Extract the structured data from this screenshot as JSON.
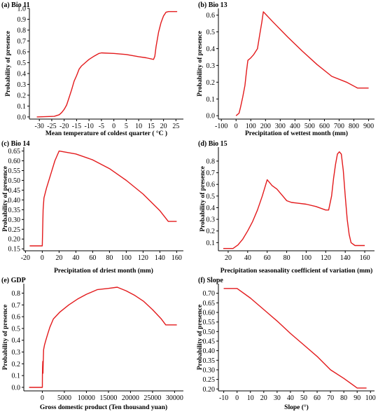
{
  "colors": {
    "line": "#e31a1c",
    "axis": "#000000"
  },
  "chart_data": [
    {
      "type": "line",
      "panel": "(a)",
      "title": "Bio 11",
      "xlabel": "Mean temperature of coldest quarter ( °C )",
      "ylabel": "Probability of presence",
      "xlim": [
        -34,
        28
      ],
      "ylim": [
        -0.02,
        1.0
      ],
      "xticks": [
        -30,
        -25,
        -20,
        -15,
        -10,
        -5,
        0,
        5,
        10,
        15,
        20,
        25
      ],
      "yticks": [
        0.0,
        0.1,
        0.2,
        0.3,
        0.4,
        0.5,
        0.6,
        0.7,
        0.8,
        0.9,
        1.0
      ],
      "x": [
        -31,
        -24,
        -22,
        -21,
        -20,
        -19,
        -18,
        -17,
        -16,
        -15,
        -14,
        -13,
        -12,
        -11,
        -10,
        -8,
        -6,
        -5,
        0,
        5,
        10,
        13,
        16,
        16.5,
        17,
        18,
        19,
        20,
        21,
        22,
        25.5
      ],
      "y": [
        0.0,
        0.005,
        0.02,
        0.04,
        0.07,
        0.11,
        0.18,
        0.25,
        0.33,
        0.38,
        0.44,
        0.47,
        0.49,
        0.51,
        0.53,
        0.56,
        0.585,
        0.59,
        0.585,
        0.575,
        0.555,
        0.545,
        0.53,
        0.56,
        0.65,
        0.78,
        0.87,
        0.93,
        0.965,
        0.97,
        0.97
      ]
    },
    {
      "type": "line",
      "panel": "(b)",
      "title": "Bio 13",
      "xlabel": "Precipitation of wettest month (mm)",
      "ylabel": "Probability of presence",
      "xlim": [
        -120,
        940
      ],
      "ylim": [
        -0.02,
        0.64
      ],
      "xticks": [
        -100,
        0,
        100,
        200,
        300,
        400,
        500,
        600,
        700,
        800,
        900
      ],
      "yticks": [
        0.0,
        0.1,
        0.2,
        0.3,
        0.4,
        0.5,
        0.6
      ],
      "x": [
        0,
        20,
        30,
        45,
        60,
        70,
        80,
        100,
        120,
        145,
        160,
        175,
        185,
        250,
        350,
        450,
        550,
        650,
        750,
        825,
        900
      ],
      "y": [
        0.0,
        0.015,
        0.05,
        0.11,
        0.18,
        0.26,
        0.33,
        0.345,
        0.365,
        0.4,
        0.48,
        0.56,
        0.62,
        0.56,
        0.47,
        0.385,
        0.305,
        0.235,
        0.2,
        0.165,
        0.165
      ]
    },
    {
      "type": "line",
      "panel": "(c)",
      "title": "Bio 14",
      "xlabel": "Precipitation of driest month (mm)",
      "ylabel": "Probability of presence",
      "xlim": [
        -22,
        168
      ],
      "ylim": [
        0.14,
        0.67
      ],
      "xticks": [
        -20,
        0,
        20,
        40,
        60,
        80,
        100,
        120,
        140,
        160
      ],
      "yticks": [
        0.15,
        0.2,
        0.25,
        0.3,
        0.35,
        0.4,
        0.45,
        0.5,
        0.55,
        0.6,
        0.65
      ],
      "x": [
        -15,
        0,
        1,
        2,
        5,
        10,
        15,
        20,
        40,
        60,
        80,
        100,
        120,
        140,
        150,
        160
      ],
      "y": [
        0.165,
        0.165,
        0.35,
        0.41,
        0.46,
        0.53,
        0.6,
        0.65,
        0.635,
        0.605,
        0.56,
        0.5,
        0.43,
        0.345,
        0.29,
        0.29
      ]
    },
    {
      "type": "line",
      "panel": "(d)",
      "title": "Bio 15",
      "xlabel": "Precipitation seasonality coefficient of variation (mm)",
      "ylabel": "Probability of presence",
      "xlim": [
        10,
        170
      ],
      "ylim": [
        0.03,
        0.92
      ],
      "xticks": [
        20,
        40,
        60,
        80,
        100,
        120,
        140,
        160
      ],
      "yticks": [
        0.1,
        0.2,
        0.3,
        0.4,
        0.5,
        0.6,
        0.7,
        0.8
      ],
      "x": [
        15,
        25,
        30,
        35,
        40,
        45,
        50,
        55,
        60,
        65,
        70,
        75,
        80,
        85,
        90,
        100,
        110,
        120,
        123,
        126,
        128,
        130,
        132,
        134,
        136,
        138,
        140,
        142,
        144,
        146,
        150,
        160
      ],
      "y": [
        0.05,
        0.05,
        0.08,
        0.13,
        0.2,
        0.28,
        0.38,
        0.5,
        0.64,
        0.59,
        0.56,
        0.51,
        0.46,
        0.445,
        0.44,
        0.43,
        0.41,
        0.38,
        0.38,
        0.5,
        0.65,
        0.77,
        0.86,
        0.88,
        0.86,
        0.72,
        0.5,
        0.3,
        0.17,
        0.1,
        0.075,
        0.075
      ]
    },
    {
      "type": "line",
      "panel": "(e)",
      "title": "GDP",
      "xlabel": "Gross domestic product (Ten thousand yuan)",
      "ylabel": "Probability of presence",
      "xlim": [
        -4200,
        32000
      ],
      "ylim": [
        -0.03,
        0.88
      ],
      "xticks": [
        0,
        5000,
        10000,
        15000,
        20000,
        25000,
        30000
      ],
      "yticks": [
        0.0,
        0.1,
        0.2,
        0.3,
        0.4,
        0.5,
        0.6,
        0.7,
        0.8
      ],
      "x": [
        -3000,
        0,
        20,
        50,
        100,
        150,
        200,
        300,
        500,
        800,
        1200,
        1700,
        2500,
        4000,
        6000,
        8000,
        10000,
        12500,
        15000,
        17000,
        19000,
        21000,
        23000,
        25000,
        27000,
        28000,
        30500
      ],
      "y": [
        0.0,
        0.0,
        0.1,
        0.17,
        0.22,
        0.12,
        0.2,
        0.32,
        0.36,
        0.4,
        0.45,
        0.51,
        0.58,
        0.64,
        0.7,
        0.75,
        0.79,
        0.83,
        0.84,
        0.85,
        0.82,
        0.78,
        0.73,
        0.66,
        0.58,
        0.53,
        0.53
      ]
    },
    {
      "type": "line",
      "panel": "(f)",
      "title": "Slope",
      "xlabel": "Slope (°)",
      "ylabel": "Probability of presence",
      "xlim": [
        -14,
        103
      ],
      "ylim": [
        0.19,
        0.75
      ],
      "xticks": [
        -10,
        0,
        10,
        20,
        30,
        40,
        50,
        60,
        70,
        80,
        90,
        100
      ],
      "yticks": [
        0.2,
        0.25,
        0.3,
        0.35,
        0.4,
        0.45,
        0.5,
        0.55,
        0.6,
        0.65,
        0.7
      ],
      "x": [
        -10,
        0,
        10,
        20,
        30,
        40,
        50,
        60,
        70,
        80,
        90,
        97
      ],
      "y": [
        0.725,
        0.725,
        0.675,
        0.615,
        0.555,
        0.49,
        0.43,
        0.37,
        0.3,
        0.255,
        0.205,
        0.205
      ]
    }
  ]
}
